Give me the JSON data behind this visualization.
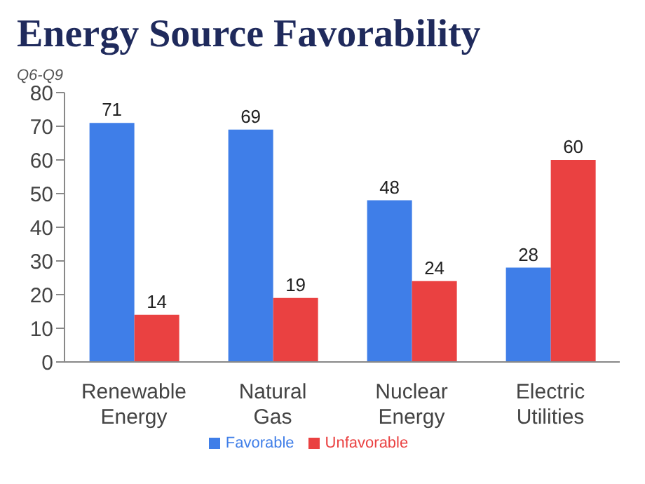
{
  "chart_data": {
    "type": "bar",
    "title": "Energy Source Favorability",
    "subtitle": "Q6-Q9",
    "categories": [
      "Renewable Energy",
      "Natural Gas",
      "Nuclear Energy",
      "Electric Utilities"
    ],
    "series": [
      {
        "name": "Favorable",
        "color": "#3f7ee8",
        "values": [
          71,
          69,
          48,
          28
        ]
      },
      {
        "name": "Unfavorable",
        "color": "#ea4141",
        "values": [
          14,
          19,
          24,
          60
        ]
      }
    ],
    "ylim": [
      0,
      80
    ],
    "yticks": [
      0,
      10,
      20,
      30,
      40,
      50,
      60,
      70,
      80
    ],
    "data_labels": true,
    "legend": "bottom",
    "grid": false
  }
}
